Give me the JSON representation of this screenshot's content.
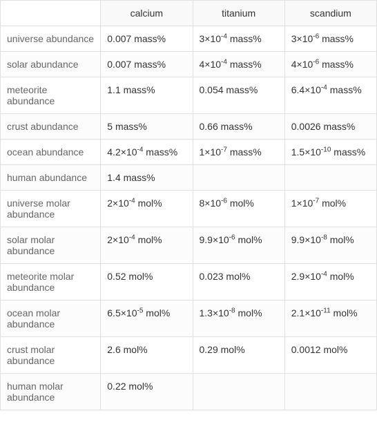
{
  "table": {
    "columns": [
      "",
      "calcium",
      "titanium",
      "scandium"
    ],
    "rows": [
      {
        "label": "universe abundance",
        "values": [
          "0.007 mass%",
          "3×10<sup>-4</sup> mass%",
          "3×10<sup>-6</sup> mass%"
        ]
      },
      {
        "label": "solar abundance",
        "values": [
          "0.007 mass%",
          "4×10<sup>-4</sup> mass%",
          "4×10<sup>-6</sup> mass%"
        ]
      },
      {
        "label": "meteorite abundance",
        "values": [
          "1.1 mass%",
          "0.054 mass%",
          "6.4×10<sup>-4</sup> mass%"
        ]
      },
      {
        "label": "crust abundance",
        "values": [
          "5 mass%",
          "0.66 mass%",
          "0.0026 mass%"
        ]
      },
      {
        "label": "ocean abundance",
        "values": [
          "4.2×10<sup>-4</sup> mass%",
          "1×10<sup>-7</sup> mass%",
          "1.5×10<sup>-10</sup> mass%"
        ]
      },
      {
        "label": "human abundance",
        "values": [
          "1.4 mass%",
          "",
          ""
        ]
      },
      {
        "label": "universe molar abundance",
        "values": [
          "2×10<sup>-4</sup> mol%",
          "8×10<sup>-6</sup> mol%",
          "1×10<sup>-7</sup> mol%"
        ]
      },
      {
        "label": "solar molar abundance",
        "values": [
          "2×10<sup>-4</sup> mol%",
          "9.9×10<sup>-6</sup> mol%",
          "9.9×10<sup>-8</sup> mol%"
        ]
      },
      {
        "label": "meteorite molar abundance",
        "values": [
          "0.52 mol%",
          "0.023 mol%",
          "2.9×10<sup>-4</sup> mol%"
        ]
      },
      {
        "label": "ocean molar abundance",
        "values": [
          "6.5×10<sup>-5</sup> mol%",
          "1.3×10<sup>-8</sup> mol%",
          "2.1×10<sup>-11</sup> mol%"
        ]
      },
      {
        "label": "crust molar abundance",
        "values": [
          "2.6 mol%",
          "0.29 mol%",
          "0.0012 mol%"
        ]
      },
      {
        "label": "human molar abundance",
        "values": [
          "0.22 mol%",
          "",
          ""
        ]
      }
    ],
    "colors": {
      "border": "#e0e0e0",
      "text": "#333333",
      "label_text": "#666666",
      "header_bg": "#f9f9f9",
      "row_bg": "#ffffff"
    },
    "font_size": 14
  }
}
